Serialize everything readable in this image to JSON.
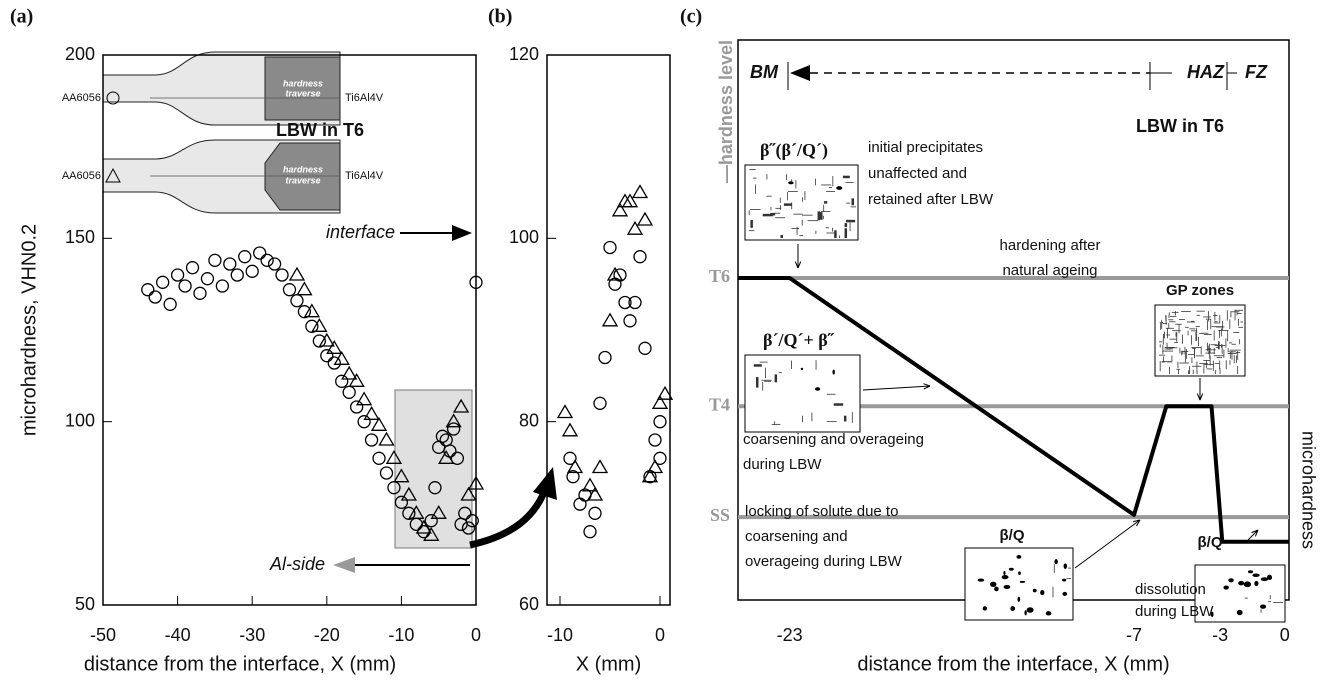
{
  "chart_data": [
    {
      "type": "scatter",
      "panel_label": "(a)",
      "xlabel": "distance from the interface, X (mm)",
      "ylabel": "microhardness, VHN0.2",
      "xlim": [
        -50,
        0
      ],
      "ylim": [
        50,
        200
      ],
      "xticks": [
        -50,
        -40,
        -30,
        -20,
        -10,
        0
      ],
      "yticks": [
        50,
        100,
        150,
        200
      ],
      "series": [
        {
          "marker": "circle",
          "color": "#000000",
          "x": [
            -44,
            -43,
            -42,
            -41,
            -40,
            -39,
            -38,
            -37,
            -36,
            -35,
            -34,
            -33,
            -32,
            -31,
            -30,
            -29,
            -28,
            -27,
            -26,
            -25,
            -24,
            -23,
            -22,
            -21,
            -20,
            -19,
            -18,
            -17,
            -16,
            -15,
            -14,
            -13,
            -12,
            -11,
            -10,
            -9,
            -8,
            -7,
            -6,
            -5.5,
            -5,
            -4.5,
            -4,
            -3.5,
            -3,
            -2.5,
            -2,
            -1.5,
            -1,
            -0.5,
            0
          ],
          "values": [
            136,
            134,
            138,
            132,
            140,
            137,
            142,
            135,
            139,
            144,
            137,
            143,
            140,
            145,
            141,
            146,
            144,
            143,
            140,
            136,
            133,
            130,
            126,
            122,
            118,
            116,
            111,
            108,
            104,
            100,
            95,
            90,
            86,
            82,
            78,
            75,
            72,
            70,
            73,
            82,
            93,
            96,
            95,
            92,
            98,
            90,
            72,
            75,
            71,
            73,
            138
          ]
        },
        {
          "marker": "triangle",
          "color": "#000000",
          "x": [
            -24,
            -23,
            -22,
            -21,
            -20,
            -19,
            -18,
            -17,
            -16,
            -15,
            -14,
            -13,
            -12,
            -11,
            -10,
            -9,
            -8,
            -7,
            -6,
            -5,
            -4,
            -3,
            -2,
            -1,
            0
          ],
          "values": [
            140,
            136,
            130,
            126,
            122,
            120,
            117,
            113,
            111,
            106,
            102,
            99,
            95,
            90,
            85,
            80,
            75,
            71,
            69,
            75,
            90,
            100,
            104,
            80,
            83
          ]
        }
      ],
      "annotations": {
        "title": "LBW in T6",
        "interface": "interface",
        "al_side": "Al-side",
        "base_metal": [
          "AA6056",
          "AA6056"
        ],
        "titanium": [
          "Ti6Al4V",
          "Ti6Al4V"
        ],
        "traverse": [
          [
            "hardness",
            "traverse"
          ],
          [
            "hardness",
            "traverse"
          ]
        ]
      }
    },
    {
      "type": "scatter",
      "panel_label": "(b)",
      "xlabel": "X (mm)",
      "xlim": [
        -11.3,
        1.0
      ],
      "ylim": [
        60,
        120
      ],
      "xticks": [
        -10,
        0
      ],
      "yticks": [
        60,
        80,
        100,
        120
      ],
      "series": [
        {
          "marker": "circle",
          "color": "#000000",
          "x": [
            -9,
            -8.7,
            -8,
            -7.5,
            -7,
            -6.5,
            -6,
            -5.5,
            -5,
            -4.5,
            -4,
            -3.5,
            -3,
            -2.5,
            -2,
            -1.5,
            -1,
            -0.5,
            0,
            0
          ],
          "values": [
            76,
            74,
            71,
            72,
            68,
            70,
            82,
            87,
            99,
            95,
            96,
            93,
            91,
            93,
            98,
            88,
            74,
            78,
            76,
            80
          ]
        },
        {
          "marker": "triangle",
          "color": "#000000",
          "x": [
            -9.5,
            -9,
            -8.5,
            -7,
            -6.5,
            -6,
            -5,
            -4.5,
            -4,
            -3.5,
            -3,
            -2.5,
            -2,
            -1.5,
            -1,
            -0.5,
            0,
            0.5
          ],
          "values": [
            81,
            79,
            75,
            73,
            72,
            75,
            91,
            96,
            103,
            104,
            104,
            101,
            105,
            102,
            74,
            75,
            82,
            83
          ]
        }
      ]
    },
    {
      "type": "line",
      "panel_label": "(c)",
      "xlabel": "distance from the interface, X (mm)",
      "ylabel": "—hardness level",
      "y2label": "microhardness",
      "xlim": [
        -25.4,
        0.2
      ],
      "ylim": [
        0,
        100
      ],
      "xticks": [
        -23,
        -7,
        -3,
        0
      ],
      "yticks": [
        {
          "value": 57.5,
          "label": "T6"
        },
        {
          "value": 34.6,
          "label": "T4"
        },
        {
          "value": 14.8,
          "label": "SS"
        }
      ],
      "level_color": "#999999",
      "series": [
        {
          "color": "#000000",
          "x": [
            -25.4,
            -23,
            -7,
            -5.5,
            -3.4,
            -2.9,
            0.2
          ],
          "values": [
            57.5,
            57.5,
            15.2,
            34.6,
            34.6,
            10.4,
            10.4
          ]
        }
      ],
      "annotations": {
        "bm": "BM",
        "haz": "HAZ",
        "fz": "FZ",
        "title": "LBW in T6",
        "initial_phase": "β˝(β´/Q´)",
        "initial_text": [
          "initial precipitates",
          "unaffected and",
          "retained after LBW"
        ],
        "hardening": [
          "hardening after",
          "natural ageing"
        ],
        "gp": "GP zones",
        "coarse_phase": "β´/Q´+ β˝",
        "coarse_text": [
          "coarsening and overageing",
          "during LBW"
        ],
        "locking": [
          "locking of solute due to",
          "coarsening and",
          "overageing during LBW"
        ],
        "bq1": "β/Q",
        "dissolution": [
          "dissolution",
          "during LBW"
        ],
        "bq2": "β/Q"
      }
    }
  ]
}
